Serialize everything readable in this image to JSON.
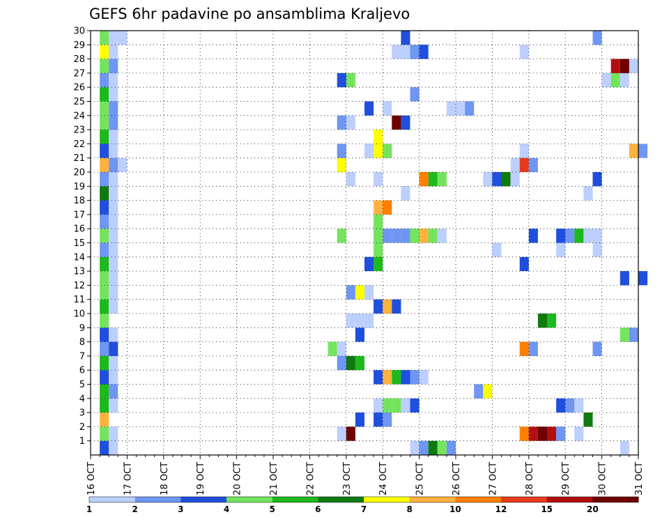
{
  "chart_data": {
    "type": "heatmap",
    "title": "GEFS 6hr padavine po ansamblima Kraljevo",
    "xlabel": "",
    "ylabel": "",
    "x_time_range": [
      "16 OCT 00Z",
      "31 OCT 00Z"
    ],
    "x_step_hours": 6,
    "x_tick_labels": [
      "16 OCT",
      "17 OCT",
      "18 OCT",
      "19 OCT",
      "20 OCT",
      "21 OCT",
      "22 OCT",
      "23 OCT",
      "24 OCT",
      "25 OCT",
      "26 OCT",
      "27 OCT",
      "28 OCT",
      "29 OCT",
      "30 OCT",
      "31 OCT"
    ],
    "y_tick_labels": [
      "1",
      "2",
      "3",
      "4",
      "5",
      "6",
      "7",
      "8",
      "9",
      "10",
      "11",
      "12",
      "13",
      "14",
      "15",
      "16",
      "17",
      "18",
      "19",
      "20",
      "21",
      "22",
      "23",
      "24",
      "25",
      "26",
      "27",
      "28",
      "29",
      "30"
    ],
    "ylim": [
      0,
      30
    ],
    "grid": true,
    "colorbar": {
      "position": "bottom",
      "labels": [
        "1",
        "2",
        "3",
        "4",
        "5",
        "6",
        "7",
        "8",
        "10",
        "12",
        "15",
        "20"
      ],
      "colors": [
        "#bccfff",
        "#6e96f2",
        "#1f4fdc",
        "#74e45e",
        "#1db91d",
        "#0f7a0f",
        "#ffff00",
        "#ffb23e",
        "#ff7f00",
        "#e8391c",
        "#b01010",
        "#6e0000"
      ]
    },
    "cells": [
      {
        "m": 1,
        "t": "16 OCT 06Z",
        "v": "3"
      },
      {
        "m": 1,
        "t": "16 OCT 12Z",
        "v": "1"
      },
      {
        "m": 1,
        "t": "24 OCT 18Z",
        "v": "1"
      },
      {
        "m": 1,
        "t": "25 OCT 00Z",
        "v": "2"
      },
      {
        "m": 1,
        "t": "25 OCT 06Z",
        "v": "6"
      },
      {
        "m": 1,
        "t": "25 OCT 12Z",
        "v": "4"
      },
      {
        "m": 1,
        "t": "25 OCT 18Z",
        "v": "2"
      },
      {
        "m": 1,
        "t": "30 OCT 12Z",
        "v": "1"
      },
      {
        "m": 2,
        "t": "16 OCT 06Z",
        "v": "4"
      },
      {
        "m": 2,
        "t": "16 OCT 12Z",
        "v": "1"
      },
      {
        "m": 2,
        "t": "22 OCT 18Z",
        "v": "1"
      },
      {
        "m": 2,
        "t": "23 OCT 00Z",
        "v": "20"
      },
      {
        "m": 2,
        "t": "27 OCT 18Z",
        "v": "10"
      },
      {
        "m": 2,
        "t": "28 OCT 00Z",
        "v": "15"
      },
      {
        "m": 2,
        "t": "28 OCT 06Z",
        "v": ">20"
      },
      {
        "m": 2,
        "t": "28 OCT 12Z",
        "v": "15"
      },
      {
        "m": 2,
        "t": "28 OCT 18Z",
        "v": "2"
      },
      {
        "m": 2,
        "t": "29 OCT 06Z",
        "v": "1"
      },
      {
        "m": 3,
        "t": "16 OCT 06Z",
        "v": "8"
      },
      {
        "m": 3,
        "t": "23 OCT 06Z",
        "v": "3"
      },
      {
        "m": 3,
        "t": "23 OCT 18Z",
        "v": "3"
      },
      {
        "m": 3,
        "t": "24 OCT 00Z",
        "v": "2"
      },
      {
        "m": 3,
        "t": "29 OCT 12Z",
        "v": "6"
      },
      {
        "m": 4,
        "t": "16 OCT 06Z",
        "v": "5"
      },
      {
        "m": 4,
        "t": "16 OCT 12Z",
        "v": "1"
      },
      {
        "m": 4,
        "t": "23 OCT 18Z",
        "v": "1"
      },
      {
        "m": 4,
        "t": "24 OCT 00Z",
        "v": "4"
      },
      {
        "m": 4,
        "t": "24 OCT 06Z",
        "v": "4"
      },
      {
        "m": 4,
        "t": "24 OCT 12Z",
        "v": "1"
      },
      {
        "m": 4,
        "t": "24 OCT 18Z",
        "v": "3"
      },
      {
        "m": 4,
        "t": "28 OCT 18Z",
        "v": "3"
      },
      {
        "m": 4,
        "t": "29 OCT 00Z",
        "v": "2"
      },
      {
        "m": 4,
        "t": "29 OCT 06Z",
        "v": "1"
      },
      {
        "m": 5,
        "t": "16 OCT 06Z",
        "v": "5"
      },
      {
        "m": 5,
        "t": "16 OCT 12Z",
        "v": "2"
      },
      {
        "m": 5,
        "t": "26 OCT 12Z",
        "v": "2"
      },
      {
        "m": 5,
        "t": "26 OCT 18Z",
        "v": "7"
      },
      {
        "m": 6,
        "t": "16 OCT 06Z",
        "v": "3"
      },
      {
        "m": 6,
        "t": "16 OCT 12Z",
        "v": "1"
      },
      {
        "m": 6,
        "t": "23 OCT 18Z",
        "v": "3"
      },
      {
        "m": 6,
        "t": "24 OCT 00Z",
        "v": "8"
      },
      {
        "m": 6,
        "t": "24 OCT 06Z",
        "v": "5"
      },
      {
        "m": 6,
        "t": "24 OCT 12Z",
        "v": "3"
      },
      {
        "m": 6,
        "t": "24 OCT 18Z",
        "v": "2"
      },
      {
        "m": 6,
        "t": "25 OCT 00Z",
        "v": "1"
      },
      {
        "m": 7,
        "t": "16 OCT 06Z",
        "v": "5"
      },
      {
        "m": 7,
        "t": "16 OCT 12Z",
        "v": "1"
      },
      {
        "m": 7,
        "t": "22 OCT 18Z",
        "v": "2"
      },
      {
        "m": 7,
        "t": "23 OCT 00Z",
        "v": "6"
      },
      {
        "m": 7,
        "t": "23 OCT 06Z",
        "v": "5"
      },
      {
        "m": 8,
        "t": "16 OCT 06Z",
        "v": "2"
      },
      {
        "m": 8,
        "t": "16 OCT 12Z",
        "v": "3"
      },
      {
        "m": 8,
        "t": "22 OCT 12Z",
        "v": "4"
      },
      {
        "m": 8,
        "t": "22 OCT 18Z",
        "v": "1"
      },
      {
        "m": 8,
        "t": "27 OCT 18Z",
        "v": "10"
      },
      {
        "m": 8,
        "t": "28 OCT 00Z",
        "v": "2"
      },
      {
        "m": 8,
        "t": "29 OCT 18Z",
        "v": "2"
      },
      {
        "m": 9,
        "t": "16 OCT 06Z",
        "v": "3"
      },
      {
        "m": 9,
        "t": "16 OCT 12Z",
        "v": "1"
      },
      {
        "m": 9,
        "t": "23 OCT 06Z",
        "v": "3"
      },
      {
        "m": 9,
        "t": "30 OCT 12Z",
        "v": "4"
      },
      {
        "m": 9,
        "t": "30 OCT 18Z",
        "v": "2"
      },
      {
        "m": 10,
        "t": "16 OCT 06Z",
        "v": "4"
      },
      {
        "m": 10,
        "t": "23 OCT 00Z",
        "v": "1"
      },
      {
        "m": 10,
        "t": "23 OCT 06Z",
        "v": "1"
      },
      {
        "m": 10,
        "t": "23 OCT 12Z",
        "v": "1"
      },
      {
        "m": 10,
        "t": "28 OCT 06Z",
        "v": "6"
      },
      {
        "m": 10,
        "t": "28 OCT 12Z",
        "v": "5"
      },
      {
        "m": 11,
        "t": "16 OCT 06Z",
        "v": "5"
      },
      {
        "m": 11,
        "t": "16 OCT 12Z",
        "v": "1"
      },
      {
        "m": 11,
        "t": "23 OCT 18Z",
        "v": "3"
      },
      {
        "m": 11,
        "t": "24 OCT 00Z",
        "v": "8"
      },
      {
        "m": 11,
        "t": "24 OCT 06Z",
        "v": "3"
      },
      {
        "m": 12,
        "t": "16 OCT 06Z",
        "v": "4"
      },
      {
        "m": 12,
        "t": "16 OCT 12Z",
        "v": "1"
      },
      {
        "m": 12,
        "t": "23 OCT 00Z",
        "v": "2"
      },
      {
        "m": 12,
        "t": "23 OCT 06Z",
        "v": "7"
      },
      {
        "m": 12,
        "t": "23 OCT 12Z",
        "v": "1"
      },
      {
        "m": 13,
        "t": "16 OCT 06Z",
        "v": "4"
      },
      {
        "m": 13,
        "t": "16 OCT 12Z",
        "v": "1"
      },
      {
        "m": 13,
        "t": "30 OCT 12Z",
        "v": "3"
      },
      {
        "m": 13,
        "t": "31 OCT 00Z",
        "v": "3"
      },
      {
        "m": 14,
        "t": "16 OCT 06Z",
        "v": "5"
      },
      {
        "m": 14,
        "t": "16 OCT 12Z",
        "v": "1"
      },
      {
        "m": 14,
        "t": "23 OCT 12Z",
        "v": "3"
      },
      {
        "m": 14,
        "t": "23 OCT 18Z",
        "v": "5"
      },
      {
        "m": 14,
        "t": "27 OCT 18Z",
        "v": "3"
      },
      {
        "m": 15,
        "t": "16 OCT 06Z",
        "v": "2"
      },
      {
        "m": 15,
        "t": "16 OCT 12Z",
        "v": "1"
      },
      {
        "m": 15,
        "t": "23 OCT 18Z",
        "v": "4"
      },
      {
        "m": 15,
        "t": "27 OCT 00Z",
        "v": "1"
      },
      {
        "m": 15,
        "t": "28 OCT 18Z",
        "v": "1"
      },
      {
        "m": 15,
        "t": "29 OCT 18Z",
        "v": "1"
      },
      {
        "m": 16,
        "t": "16 OCT 06Z",
        "v": "4"
      },
      {
        "m": 16,
        "t": "16 OCT 12Z",
        "v": "1"
      },
      {
        "m": 16,
        "t": "22 OCT 18Z",
        "v": "4"
      },
      {
        "m": 16,
        "t": "23 OCT 18Z",
        "v": "4"
      },
      {
        "m": 16,
        "t": "24 OCT 00Z",
        "v": "2"
      },
      {
        "m": 16,
        "t": "24 OCT 06Z",
        "v": "2"
      },
      {
        "m": 16,
        "t": "24 OCT 12Z",
        "v": "2"
      },
      {
        "m": 16,
        "t": "24 OCT 18Z",
        "v": "4"
      },
      {
        "m": 16,
        "t": "25 OCT 00Z",
        "v": "8"
      },
      {
        "m": 16,
        "t": "25 OCT 06Z",
        "v": "4"
      },
      {
        "m": 16,
        "t": "25 OCT 12Z",
        "v": "1"
      },
      {
        "m": 16,
        "t": "28 OCT 00Z",
        "v": "3"
      },
      {
        "m": 16,
        "t": "28 OCT 18Z",
        "v": "3"
      },
      {
        "m": 16,
        "t": "29 OCT 00Z",
        "v": "2"
      },
      {
        "m": 16,
        "t": "29 OCT 06Z",
        "v": "5"
      },
      {
        "m": 16,
        "t": "29 OCT 12Z",
        "v": "1"
      },
      {
        "m": 16,
        "t": "29 OCT 18Z",
        "v": "1"
      },
      {
        "m": 17,
        "t": "16 OCT 06Z",
        "v": "2"
      },
      {
        "m": 17,
        "t": "16 OCT 12Z",
        "v": "1"
      },
      {
        "m": 17,
        "t": "23 OCT 18Z",
        "v": "4"
      },
      {
        "m": 18,
        "t": "16 OCT 06Z",
        "v": "3"
      },
      {
        "m": 18,
        "t": "16 OCT 12Z",
        "v": "1"
      },
      {
        "m": 18,
        "t": "23 OCT 18Z",
        "v": "8"
      },
      {
        "m": 18,
        "t": "24 OCT 00Z",
        "v": "10"
      },
      {
        "m": 19,
        "t": "16 OCT 06Z",
        "v": "6"
      },
      {
        "m": 19,
        "t": "16 OCT 12Z",
        "v": "1"
      },
      {
        "m": 19,
        "t": "24 OCT 12Z",
        "v": "1"
      },
      {
        "m": 19,
        "t": "29 OCT 12Z",
        "v": "1"
      },
      {
        "m": 20,
        "t": "16 OCT 06Z",
        "v": "2"
      },
      {
        "m": 20,
        "t": "16 OCT 12Z",
        "v": "1"
      },
      {
        "m": 20,
        "t": "23 OCT 00Z",
        "v": "1"
      },
      {
        "m": 20,
        "t": "23 OCT 18Z",
        "v": "1"
      },
      {
        "m": 20,
        "t": "25 OCT 00Z",
        "v": "10"
      },
      {
        "m": 20,
        "t": "25 OCT 06Z",
        "v": "5"
      },
      {
        "m": 20,
        "t": "25 OCT 12Z",
        "v": "4"
      },
      {
        "m": 20,
        "t": "26 OCT 18Z",
        "v": "1"
      },
      {
        "m": 20,
        "t": "27 OCT 00Z",
        "v": "3"
      },
      {
        "m": 20,
        "t": "27 OCT 06Z",
        "v": "6"
      },
      {
        "m": 20,
        "t": "27 OCT 12Z",
        "v": "1"
      },
      {
        "m": 20,
        "t": "29 OCT 18Z",
        "v": "3"
      },
      {
        "m": 21,
        "t": "16 OCT 06Z",
        "v": "8"
      },
      {
        "m": 21,
        "t": "16 OCT 12Z",
        "v": "2"
      },
      {
        "m": 21,
        "t": "16 OCT 18Z",
        "v": "1"
      },
      {
        "m": 21,
        "t": "22 OCT 18Z",
        "v": "7"
      },
      {
        "m": 21,
        "t": "27 OCT 12Z",
        "v": "1"
      },
      {
        "m": 21,
        "t": "27 OCT 18Z",
        "v": "12"
      },
      {
        "m": 21,
        "t": "28 OCT 00Z",
        "v": "2"
      },
      {
        "m": 22,
        "t": "16 OCT 06Z",
        "v": "3"
      },
      {
        "m": 22,
        "t": "16 OCT 12Z",
        "v": "1"
      },
      {
        "m": 22,
        "t": "22 OCT 18Z",
        "v": "2"
      },
      {
        "m": 22,
        "t": "23 OCT 12Z",
        "v": "1"
      },
      {
        "m": 22,
        "t": "23 OCT 18Z",
        "v": "7"
      },
      {
        "m": 22,
        "t": "24 OCT 00Z",
        "v": "4"
      },
      {
        "m": 22,
        "t": "27 OCT 18Z",
        "v": "1"
      },
      {
        "m": 22,
        "t": "30 OCT 18Z",
        "v": "8"
      },
      {
        "m": 22,
        "t": "31 OCT 00Z",
        "v": "2"
      },
      {
        "m": 23,
        "t": "16 OCT 06Z",
        "v": "5"
      },
      {
        "m": 23,
        "t": "16 OCT 12Z",
        "v": "1"
      },
      {
        "m": 23,
        "t": "23 OCT 18Z",
        "v": "7"
      },
      {
        "m": 24,
        "t": "16 OCT 06Z",
        "v": "4"
      },
      {
        "m": 24,
        "t": "16 OCT 12Z",
        "v": "2"
      },
      {
        "m": 24,
        "t": "22 OCT 18Z",
        "v": "2"
      },
      {
        "m": 24,
        "t": "23 OCT 00Z",
        "v": "1"
      },
      {
        "m": 24,
        "t": "24 OCT 06Z",
        "v": ">20"
      },
      {
        "m": 24,
        "t": "24 OCT 12Z",
        "v": "3"
      },
      {
        "m": 25,
        "t": "16 OCT 06Z",
        "v": "4"
      },
      {
        "m": 25,
        "t": "16 OCT 12Z",
        "v": "2"
      },
      {
        "m": 25,
        "t": "23 OCT 12Z",
        "v": "3"
      },
      {
        "m": 25,
        "t": "24 OCT 00Z",
        "v": "1"
      },
      {
        "m": 25,
        "t": "25 OCT 18Z",
        "v": "1"
      },
      {
        "m": 25,
        "t": "26 OCT 00Z",
        "v": "1"
      },
      {
        "m": 25,
        "t": "26 OCT 06Z",
        "v": "2"
      },
      {
        "m": 26,
        "t": "16 OCT 06Z",
        "v": "5"
      },
      {
        "m": 26,
        "t": "16 OCT 12Z",
        "v": "1"
      },
      {
        "m": 26,
        "t": "24 OCT 18Z",
        "v": "2"
      },
      {
        "m": 27,
        "t": "16 OCT 06Z",
        "v": "2"
      },
      {
        "m": 27,
        "t": "16 OCT 12Z",
        "v": "1"
      },
      {
        "m": 27,
        "t": "22 OCT 18Z",
        "v": "3"
      },
      {
        "m": 27,
        "t": "23 OCT 00Z",
        "v": "4"
      },
      {
        "m": 27,
        "t": "30 OCT 00Z",
        "v": "1"
      },
      {
        "m": 27,
        "t": "30 OCT 06Z",
        "v": "4"
      },
      {
        "m": 27,
        "t": "30 OCT 12Z",
        "v": "1"
      },
      {
        "m": 28,
        "t": "16 OCT 06Z",
        "v": "4"
      },
      {
        "m": 28,
        "t": "16 OCT 12Z",
        "v": "2"
      },
      {
        "m": 28,
        "t": "30 OCT 06Z",
        "v": "15"
      },
      {
        "m": 28,
        "t": "30 OCT 12Z",
        "v": "20"
      },
      {
        "m": 28,
        "t": "30 OCT 18Z",
        "v": "1"
      },
      {
        "m": 29,
        "t": "16 OCT 06Z",
        "v": "7"
      },
      {
        "m": 29,
        "t": "16 OCT 12Z",
        "v": "1"
      },
      {
        "m": 29,
        "t": "24 OCT 06Z",
        "v": "1"
      },
      {
        "m": 29,
        "t": "24 OCT 12Z",
        "v": "1"
      },
      {
        "m": 29,
        "t": "24 OCT 18Z",
        "v": "2"
      },
      {
        "m": 29,
        "t": "25 OCT 00Z",
        "v": "3"
      },
      {
        "m": 29,
        "t": "27 OCT 18Z",
        "v": "1"
      },
      {
        "m": 30,
        "t": "16 OCT 06Z",
        "v": "4"
      },
      {
        "m": 30,
        "t": "16 OCT 12Z",
        "v": "1"
      },
      {
        "m": 30,
        "t": "16 OCT 18Z",
        "v": "1"
      },
      {
        "m": 30,
        "t": "24 OCT 12Z",
        "v": "3"
      },
      {
        "m": 30,
        "t": "29 OCT 18Z",
        "v": "2"
      }
    ]
  }
}
